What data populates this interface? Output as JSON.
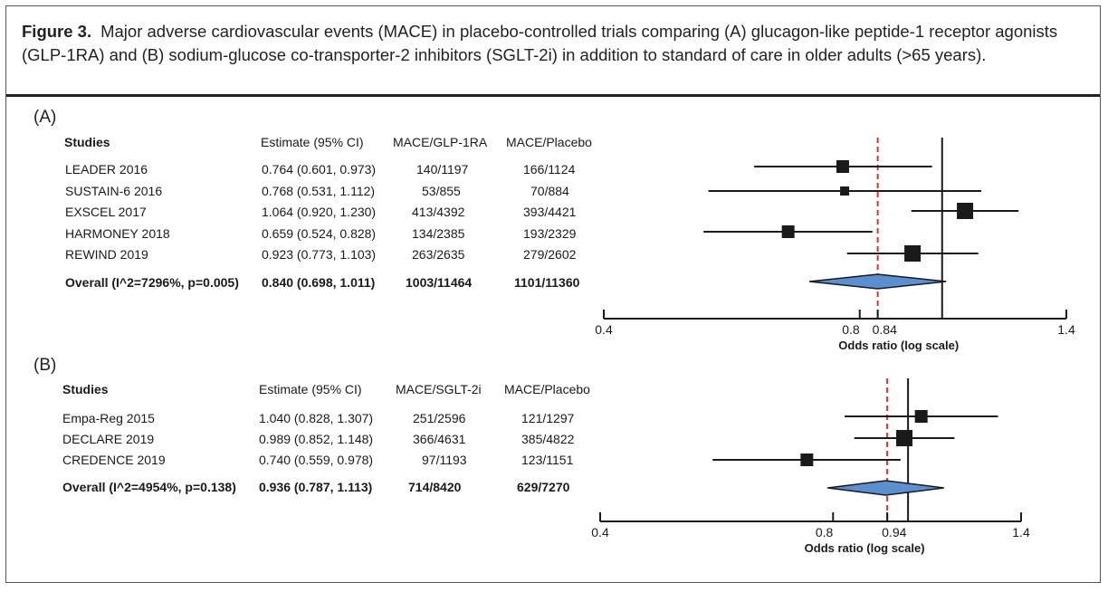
{
  "caption": {
    "label": "Figure 3.",
    "text": "Major adverse cardiovascular events (MACE) in placebo-controlled trials comparing (A) glucagon-like peptide-1 receptor agonists (GLP-1RA) and (B) sodium-glucose co-transporter-2 inhibitors (SGLT-2i) in addition to standard of care in older adults (>65 years)."
  },
  "chart_data": [
    {
      "type": "forest",
      "panel_label": "(A)",
      "columns": [
        "Studies",
        "Estimate (95% CI)",
        "MACE/GLP-1RA",
        "MACE/Placebo"
      ],
      "rows": [
        {
          "study": "LEADER 2016",
          "estimate_text": "0.764 (0.601, 0.973)",
          "treatment": "140/1197",
          "placebo": "166/1124",
          "or": 0.764,
          "lo": 0.601,
          "hi": 0.973,
          "weight": "medium"
        },
        {
          "study": "SUSTAIN-6 2016",
          "estimate_text": "0.768 (0.531, 1.112)",
          "treatment": "53/855",
          "placebo": "70/884",
          "or": 0.768,
          "lo": 0.531,
          "hi": 1.112,
          "weight": "small"
        },
        {
          "study": "EXSCEL 2017",
          "estimate_text": "1.064 (0.920, 1.230)",
          "treatment": "413/4392",
          "placebo": "393/4421",
          "or": 1.064,
          "lo": 0.92,
          "hi": 1.23,
          "weight": "large"
        },
        {
          "study": "HARMONEY 2018",
          "estimate_text": "0.659 (0.524, 0.828)",
          "treatment": "134/2385",
          "placebo": "193/2329",
          "or": 0.659,
          "lo": 0.524,
          "hi": 0.828,
          "weight": "medium"
        },
        {
          "study": "REWIND 2019",
          "estimate_text": "0.923 (0.773, 1.103)",
          "treatment": "263/2635",
          "placebo": "279/2602",
          "or": 0.923,
          "lo": 0.773,
          "hi": 1.103,
          "weight": "large"
        }
      ],
      "overall": {
        "label": "Overall (I^2=7296%, p=0.005)",
        "estimate_text": "0.840 (0.698, 1.011)",
        "treatment": "1003/11464",
        "placebo": "1101/11360",
        "or": 0.84,
        "lo": 0.698,
        "hi": 1.011
      },
      "x_scale": "log",
      "xlim": [
        0.4,
        1.4
      ],
      "ticks": [
        0.4,
        0.8,
        0.84,
        1.4
      ],
      "tick_labels": [
        "0.4",
        "0.8",
        "0.84",
        "1.4"
      ],
      "reference_line": 1.0,
      "pooled_line": 0.84,
      "xlabel": "Odds ratio (log scale)"
    },
    {
      "type": "forest",
      "panel_label": "(B)",
      "columns": [
        "Studies",
        "Estimate (95% CI)",
        "MACE/SGLT-2i",
        "MACE/Placebo"
      ],
      "rows": [
        {
          "study": "Empa-Reg 2015",
          "estimate_text": "1.040 (0.828, 1.307)",
          "treatment": "251/2596",
          "placebo": "121/1297",
          "or": 1.04,
          "lo": 0.828,
          "hi": 1.307,
          "weight": "medium"
        },
        {
          "study": "DECLARE 2019",
          "estimate_text": "0.989 (0.852, 1.148)",
          "treatment": "366/4631",
          "placebo": "385/4822",
          "or": 0.989,
          "lo": 0.852,
          "hi": 1.148,
          "weight": "large"
        },
        {
          "study": "CREDENCE 2019",
          "estimate_text": "0.740 (0.559, 0.978)",
          "treatment": "97/1193",
          "placebo": "123/1151",
          "or": 0.74,
          "lo": 0.559,
          "hi": 0.978,
          "weight": "medium"
        }
      ],
      "overall": {
        "label": "Overall (I^2=4954%, p=0.138)",
        "estimate_text": "0.936 (0.787, 1.113)",
        "treatment": "714/8420",
        "placebo": "629/7270",
        "or": 0.936,
        "lo": 0.787,
        "hi": 1.113
      },
      "x_scale": "log",
      "xlim": [
        0.4,
        1.4
      ],
      "ticks": [
        0.4,
        0.8,
        0.94,
        1.4
      ],
      "tick_labels": [
        "0.4",
        "0.8",
        "0.94",
        "1.4"
      ],
      "reference_line": 1.0,
      "pooled_line": 0.94,
      "xlabel": "Odds ratio (log scale)"
    }
  ],
  "colors": {
    "diamond_fill": "#5b8fd0",
    "diamond_stroke": "#1a1a1a",
    "pooled_line": "#e0302a",
    "marks": "#1a1a1a"
  }
}
